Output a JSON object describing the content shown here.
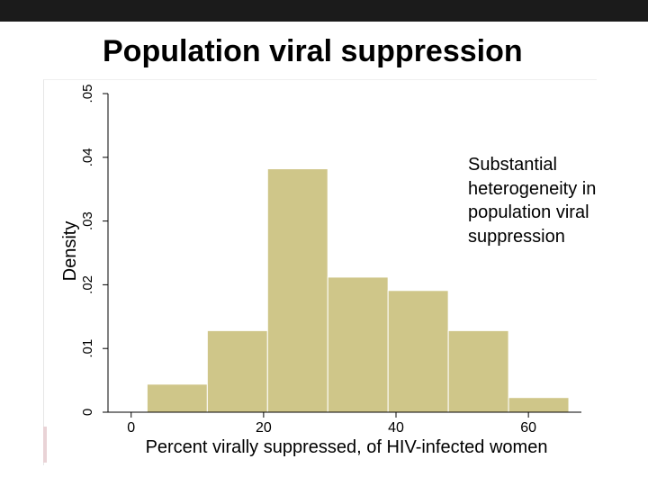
{
  "slide": {
    "title": "Population viral suppression"
  },
  "annotation_lines": [
    "Substantial",
    "heterogeneity in",
    "population viral",
    "suppression"
  ],
  "colors": {
    "bar_fill": "#cfc689",
    "bar_stroke": "#ffffff",
    "axis": "#000000",
    "top_bar": "#1b1b1b"
  },
  "chart_data": {
    "type": "bar",
    "subtype": "histogram",
    "title": "",
    "xlabel": "Percent virally suppressed, of HIV-infected women",
    "ylabel": "Density",
    "xlim": [
      -3.5,
      68
    ],
    "ylim": [
      0,
      0.05
    ],
    "x_ticks": [
      0,
      20,
      40,
      60
    ],
    "x_tick_labels": [
      "0",
      "20",
      "40",
      "60"
    ],
    "y_ticks": [
      0,
      0.01,
      0.02,
      0.03,
      0.04,
      0.05
    ],
    "y_tick_labels": [
      "0",
      ".01",
      ".02",
      ".03",
      ".04",
      ".05"
    ],
    "bins": [
      {
        "start": 2.4,
        "end": 11.5,
        "density": 0.0044
      },
      {
        "start": 11.5,
        "end": 20.6,
        "density": 0.0128
      },
      {
        "start": 20.6,
        "end": 29.7,
        "density": 0.0382
      },
      {
        "start": 29.7,
        "end": 38.8,
        "density": 0.0212
      },
      {
        "start": 38.8,
        "end": 47.9,
        "density": 0.0191
      },
      {
        "start": 47.9,
        "end": 57.0,
        "density": 0.0128
      },
      {
        "start": 57.0,
        "end": 66.1,
        "density": 0.0023
      }
    ],
    "grid": false,
    "legend": "none"
  }
}
